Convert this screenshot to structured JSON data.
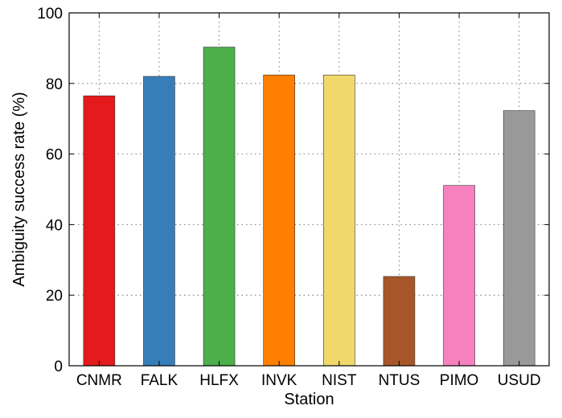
{
  "chart_data": {
    "type": "bar",
    "title": "",
    "xlabel": "Station",
    "ylabel": "Ambiguity success rate (%)",
    "categories": [
      "CNMR",
      "FALK",
      "HLFX",
      "INVK",
      "NIST",
      "NTUS",
      "PIMO",
      "USUD"
    ],
    "values": [
      76.5,
      82.0,
      90.3,
      82.4,
      82.4,
      25.3,
      51.1,
      72.3
    ],
    "colors": [
      "#e41a1c",
      "#377eb8",
      "#4daf4a",
      "#ff7f00",
      "#f0d96a",
      "#a65628",
      "#f781bf",
      "#999999"
    ],
    "ylim": [
      0,
      100
    ],
    "yticks": [
      0,
      20,
      40,
      60,
      80,
      100
    ],
    "grid": true,
    "legend": "none"
  }
}
